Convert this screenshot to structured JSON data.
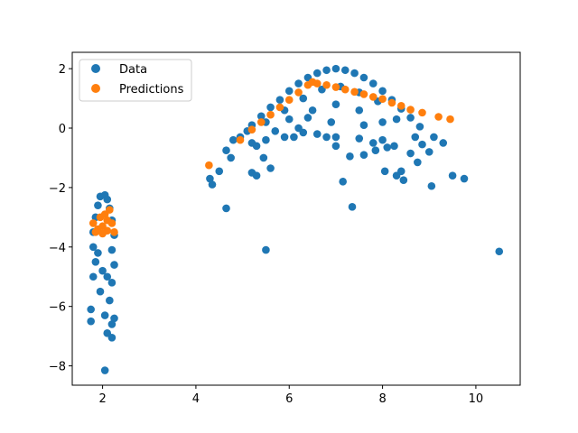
{
  "chart_data": {
    "type": "scatter",
    "title": "",
    "xlabel": "",
    "ylabel": "",
    "xlim": [
      1.35,
      10.95
    ],
    "ylim": [
      -8.65,
      2.55
    ],
    "xticks": [
      2,
      4,
      6,
      8,
      10
    ],
    "yticks": [
      -8,
      -6,
      -4,
      -2,
      0,
      2
    ],
    "grid": false,
    "legend_position": "top-left",
    "series": [
      {
        "name": "Data",
        "color": "#1f77b4",
        "marker": "circle",
        "description": "cluster near x≈2 spanning y≈-8.1 to -2.2, plus arc from x≈4.3 to 10.5 peaking near y≈2 at x≈7",
        "points": [
          [
            1.95,
            -2.3
          ],
          [
            2.05,
            -2.25
          ],
          [
            2.1,
            -2.4
          ],
          [
            1.9,
            -2.6
          ],
          [
            2.15,
            -2.7
          ],
          [
            1.85,
            -3.0
          ],
          [
            2.2,
            -3.1
          ],
          [
            1.8,
            -3.5
          ],
          [
            2.25,
            -3.6
          ],
          [
            1.8,
            -4.0
          ],
          [
            2.2,
            -4.1
          ],
          [
            1.85,
            -4.5
          ],
          [
            2.25,
            -4.6
          ],
          [
            1.8,
            -5.0
          ],
          [
            2.2,
            -5.2
          ],
          [
            1.95,
            -5.5
          ],
          [
            2.15,
            -5.8
          ],
          [
            1.75,
            -6.1
          ],
          [
            2.05,
            -6.3
          ],
          [
            2.25,
            -6.4
          ],
          [
            1.75,
            -6.5
          ],
          [
            2.2,
            -6.6
          ],
          [
            2.1,
            -6.9
          ],
          [
            2.2,
            -7.05
          ],
          [
            2.05,
            -8.15
          ],
          [
            2.0,
            -4.8
          ],
          [
            2.1,
            -5.0
          ],
          [
            1.9,
            -4.2
          ],
          [
            4.3,
            -1.7
          ],
          [
            4.35,
            -1.9
          ],
          [
            4.5,
            -1.45
          ],
          [
            4.65,
            -2.7
          ],
          [
            4.65,
            -0.75
          ],
          [
            4.75,
            -1.0
          ],
          [
            4.8,
            -0.4
          ],
          [
            4.95,
            -0.3
          ],
          [
            5.1,
            -0.1
          ],
          [
            5.2,
            -0.5
          ],
          [
            5.2,
            -1.5
          ],
          [
            5.3,
            -0.6
          ],
          [
            5.3,
            -1.6
          ],
          [
            5.45,
            -1.0
          ],
          [
            5.5,
            -4.1
          ],
          [
            5.6,
            -1.35
          ],
          [
            5.5,
            -0.4
          ],
          [
            5.7,
            -0.1
          ],
          [
            5.9,
            -0.3
          ],
          [
            6.1,
            -0.3
          ],
          [
            6.3,
            -0.15
          ],
          [
            6.4,
            0.35
          ],
          [
            6.6,
            -0.2
          ],
          [
            6.8,
            -0.3
          ],
          [
            7.0,
            -0.3
          ],
          [
            7.0,
            -0.6
          ],
          [
            7.15,
            -1.8
          ],
          [
            7.3,
            -0.95
          ],
          [
            7.35,
            -2.65
          ],
          [
            7.5,
            -0.35
          ],
          [
            7.6,
            -0.9
          ],
          [
            7.8,
            -0.5
          ],
          [
            7.85,
            -0.75
          ],
          [
            8.0,
            -0.4
          ],
          [
            8.05,
            -1.45
          ],
          [
            8.1,
            -0.65
          ],
          [
            8.25,
            -0.6
          ],
          [
            8.3,
            -1.6
          ],
          [
            8.4,
            -1.45
          ],
          [
            8.45,
            -1.75
          ],
          [
            8.6,
            -0.85
          ],
          [
            8.7,
            -0.3
          ],
          [
            8.75,
            -1.15
          ],
          [
            8.85,
            -0.55
          ],
          [
            9.0,
            -0.8
          ],
          [
            9.05,
            -1.95
          ],
          [
            9.1,
            -0.3
          ],
          [
            9.3,
            -0.5
          ],
          [
            9.5,
            -1.6
          ],
          [
            9.75,
            -1.7
          ],
          [
            10.5,
            -4.15
          ],
          [
            5.2,
            0.1
          ],
          [
            5.4,
            0.4
          ],
          [
            5.6,
            0.7
          ],
          [
            5.8,
            0.95
          ],
          [
            6.0,
            1.25
          ],
          [
            6.2,
            1.5
          ],
          [
            6.4,
            1.7
          ],
          [
            6.6,
            1.85
          ],
          [
            6.8,
            1.95
          ],
          [
            7.0,
            2.0
          ],
          [
            7.2,
            1.95
          ],
          [
            7.4,
            1.85
          ],
          [
            7.6,
            1.7
          ],
          [
            7.8,
            1.5
          ],
          [
            8.0,
            1.25
          ],
          [
            8.2,
            0.95
          ],
          [
            8.4,
            0.65
          ],
          [
            8.6,
            0.35
          ],
          [
            8.8,
            0.05
          ],
          [
            5.5,
            0.2
          ],
          [
            5.9,
            0.6
          ],
          [
            6.3,
            1.0
          ],
          [
            6.7,
            1.3
          ],
          [
            7.1,
            1.4
          ],
          [
            7.5,
            1.2
          ],
          [
            7.9,
            0.9
          ],
          [
            8.3,
            0.3
          ],
          [
            6.0,
            0.3
          ],
          [
            6.5,
            0.6
          ],
          [
            7.0,
            0.8
          ],
          [
            7.5,
            0.6
          ],
          [
            8.0,
            0.2
          ],
          [
            6.2,
            0.0
          ],
          [
            6.9,
            0.2
          ],
          [
            7.6,
            0.1
          ]
        ]
      },
      {
        "name": "Predictions",
        "color": "#ff7f0e",
        "marker": "circle",
        "description": "cluster near x≈2 at y≈-3.5 to -2.7, plus a line rising from x≈4.3 to peak y≈1.55 at x≈6.5 then falling to y≈0.3 at x≈9.4",
        "points": [
          [
            1.8,
            -3.2
          ],
          [
            1.85,
            -3.5
          ],
          [
            1.95,
            -3.0
          ],
          [
            2.0,
            -3.3
          ],
          [
            2.05,
            -2.9
          ],
          [
            2.1,
            -3.45
          ],
          [
            2.15,
            -2.75
          ],
          [
            2.2,
            -3.2
          ],
          [
            2.25,
            -3.5
          ],
          [
            1.9,
            -3.4
          ],
          [
            2.0,
            -3.55
          ],
          [
            2.1,
            -3.1
          ],
          [
            4.28,
            -1.25
          ],
          [
            4.95,
            -0.4
          ],
          [
            5.2,
            -0.05
          ],
          [
            5.4,
            0.2
          ],
          [
            5.6,
            0.45
          ],
          [
            5.8,
            0.7
          ],
          [
            6.0,
            0.95
          ],
          [
            6.2,
            1.2
          ],
          [
            6.4,
            1.45
          ],
          [
            6.5,
            1.55
          ],
          [
            6.6,
            1.5
          ],
          [
            6.8,
            1.45
          ],
          [
            7.0,
            1.38
          ],
          [
            7.2,
            1.3
          ],
          [
            7.4,
            1.22
          ],
          [
            7.6,
            1.14
          ],
          [
            7.8,
            1.05
          ],
          [
            8.0,
            0.98
          ],
          [
            8.2,
            0.85
          ],
          [
            8.4,
            0.75
          ],
          [
            8.6,
            0.62
          ],
          [
            8.85,
            0.52
          ],
          [
            9.2,
            0.38
          ],
          [
            9.45,
            0.3
          ]
        ]
      }
    ]
  }
}
